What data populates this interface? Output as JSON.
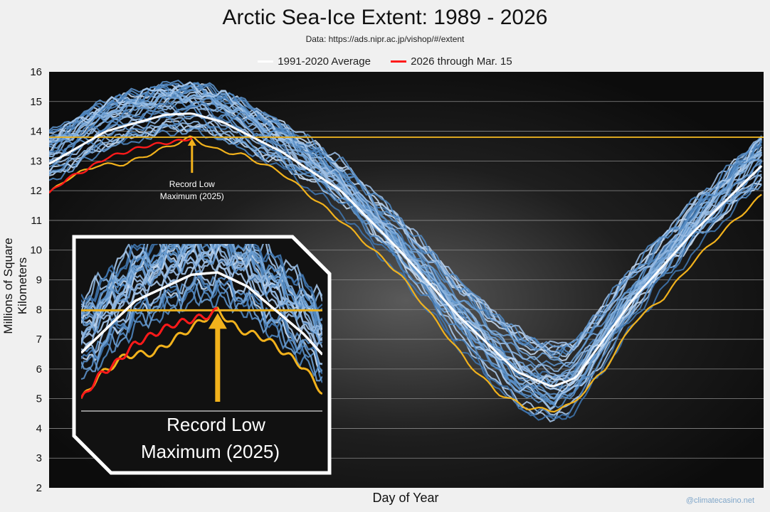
{
  "chart_data": {
    "type": "line",
    "title": "Arctic Sea-Ice Extent: 1989 - 2026",
    "subtitle": "Data: https://ads.nipr.ac.jp/vishop/#/extent",
    "xlabel": "Day of Year",
    "ylabel": "Millions of Square Kilometers",
    "ylim": [
      2,
      16
    ],
    "xlim": [
      1,
      366
    ],
    "yticks": [
      "2",
      "3",
      "4",
      "5",
      "6",
      "7",
      "8",
      "9",
      "10",
      "11",
      "12",
      "13",
      "14",
      "15",
      "16"
    ],
    "legend": [
      {
        "label": "1991-2020 Average",
        "color": "#ffffff"
      },
      {
        "label": "2026 through Mar. 15",
        "color": "#ff1a1a"
      }
    ],
    "average_series": {
      "name": "1991-2020 Average",
      "x": [
        1,
        30,
        60,
        74,
        90,
        120,
        150,
        180,
        210,
        240,
        258,
        270,
        300,
        330,
        366
      ],
      "y": [
        12.9,
        14.0,
        14.55,
        14.6,
        14.3,
        13.3,
        12.0,
        10.0,
        7.8,
        5.9,
        5.4,
        5.7,
        8.4,
        10.6,
        12.9
      ]
    },
    "series_2026": {
      "name": "2026 through Mar. 15",
      "x": [
        1,
        10,
        20,
        30,
        40,
        50,
        60,
        70,
        74
      ],
      "y": [
        11.9,
        12.4,
        12.7,
        13.1,
        13.3,
        13.5,
        13.6,
        13.7,
        13.8
      ]
    },
    "series_2025": {
      "name": "2025",
      "x": [
        1,
        10,
        25,
        40,
        55,
        70,
        74,
        85,
        100,
        120,
        150,
        180,
        200,
        215,
        230,
        245,
        258,
        268,
        285,
        300,
        315,
        330,
        345,
        366
      ],
      "y": [
        11.9,
        12.4,
        12.85,
        12.9,
        13.3,
        13.7,
        13.8,
        13.4,
        13.2,
        12.6,
        11.0,
        9.2,
        7.5,
        6.2,
        5.2,
        4.7,
        4.6,
        4.8,
        6.0,
        7.6,
        8.4,
        9.6,
        10.6,
        11.9
      ]
    },
    "record_low_max_line": 13.8,
    "annotation": {
      "label": "Record Low Maximum (2025)",
      "x": 74,
      "y": 13.8
    },
    "inset": {
      "label_line1": "Record Low",
      "label_line2": "Maximum (2025)"
    }
  },
  "annotations": {
    "label_line1": "Record Low",
    "label_line2": "Maximum (2025)"
  },
  "credit": "@climatecasino.net"
}
